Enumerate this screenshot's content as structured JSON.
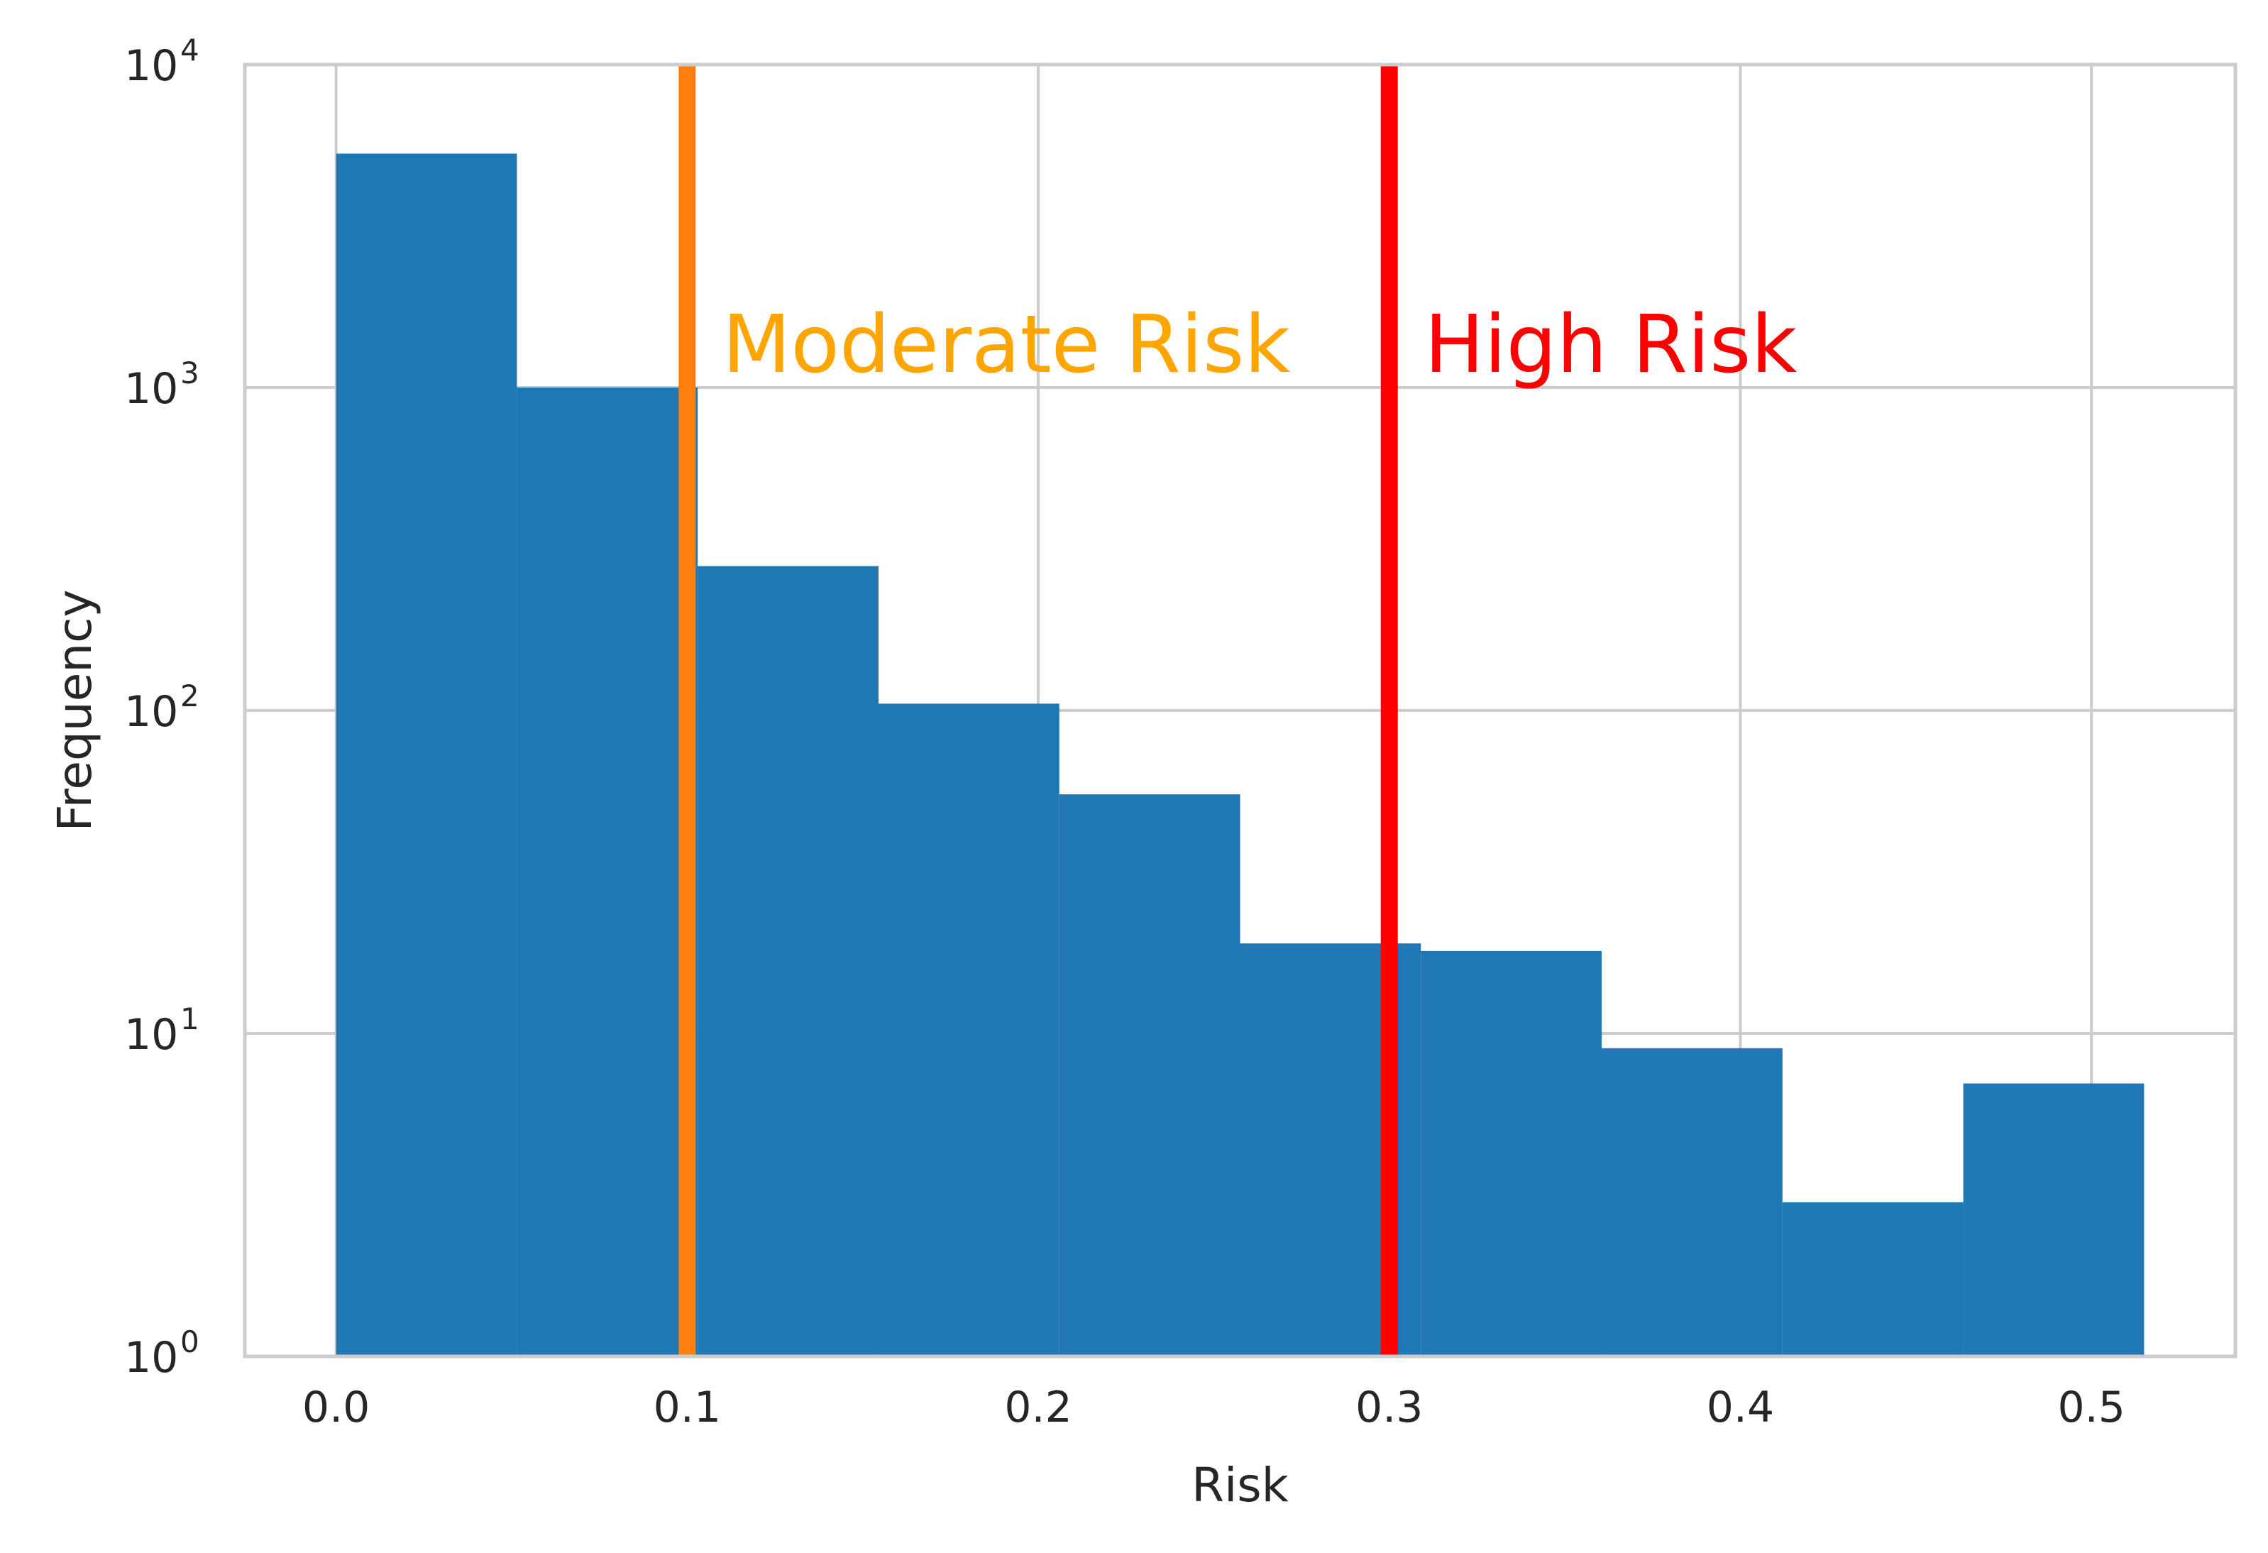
{
  "chart_data": {
    "type": "bar",
    "subtype": "histogram",
    "title": "",
    "xlabel": "Risk",
    "ylabel": "Frequency",
    "yscale": "log",
    "xlim": [
      -0.026,
      0.541
    ],
    "ylim": [
      1,
      10000
    ],
    "grid": true,
    "legend": "none",
    "bin_edges": [
      0.0,
      0.0515,
      0.103,
      0.1545,
      0.206,
      0.2575,
      0.309,
      0.3605,
      0.412,
      0.4635,
      0.515
    ],
    "values": [
      5300,
      1000,
      280,
      105,
      55,
      19,
      18,
      9,
      3,
      7
    ],
    "x_ticks": [
      {
        "value": 0.0,
        "label": "0.0"
      },
      {
        "value": 0.1,
        "label": "0.1"
      },
      {
        "value": 0.2,
        "label": "0.2"
      },
      {
        "value": 0.3,
        "label": "0.3"
      },
      {
        "value": 0.4,
        "label": "0.4"
      },
      {
        "value": 0.5,
        "label": "0.5"
      }
    ],
    "y_ticks": [
      {
        "value": 1,
        "base": "10",
        "exp": "0"
      },
      {
        "value": 10,
        "base": "10",
        "exp": "1"
      },
      {
        "value": 100,
        "base": "10",
        "exp": "2"
      },
      {
        "value": 1000,
        "base": "10",
        "exp": "3"
      },
      {
        "value": 10000,
        "base": "10",
        "exp": "4"
      }
    ],
    "thresholds": [
      {
        "x": 0.1,
        "label": "Moderate Risk",
        "line_color": "#ff7f0e",
        "text_color": "#ffa500",
        "label_x": 0.11,
        "label_y": 1000
      },
      {
        "x": 0.3,
        "label": "High Risk",
        "line_color": "#ff0000",
        "text_color": "#ff0000",
        "label_x": 0.31,
        "label_y": 1000
      }
    ],
    "colors": {
      "bar": "#1f77b4",
      "grid": "#cccccc",
      "spine": "#cccccc",
      "text": "#262626"
    }
  }
}
